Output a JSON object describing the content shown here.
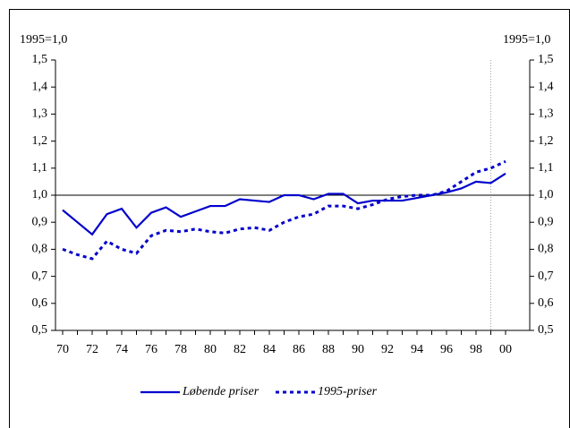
{
  "chart_data": {
    "type": "line",
    "y_label": "1995=1,0",
    "y2_label": "1995=1,0",
    "categories": [
      "70",
      null,
      "72",
      null,
      "74",
      null,
      "76",
      null,
      "78",
      null,
      "80",
      null,
      "82",
      null,
      "84",
      null,
      "86",
      null,
      "88",
      null,
      "90",
      null,
      "92",
      null,
      "94",
      null,
      "96",
      null,
      "98",
      null,
      "00"
    ],
    "series": [
      {
        "name": "Løbende priser",
        "color": "#0000cc",
        "dash": false,
        "values": [
          0.945,
          0.9,
          0.855,
          0.93,
          0.95,
          0.88,
          0.935,
          0.955,
          0.92,
          0.94,
          0.96,
          0.96,
          0.985,
          0.98,
          0.975,
          1.0,
          1.0,
          0.985,
          1.005,
          1.005,
          0.97,
          0.98,
          0.98,
          0.98,
          0.99,
          1.0,
          1.01,
          1.025,
          1.05,
          1.045,
          1.08
        ]
      },
      {
        "name": "1995-priser",
        "color": "#0000cc",
        "dash": true,
        "values": [
          0.8,
          0.78,
          0.765,
          0.83,
          0.8,
          0.785,
          0.85,
          0.87,
          0.865,
          0.875,
          0.865,
          0.86,
          0.875,
          0.88,
          0.87,
          0.9,
          0.92,
          0.93,
          0.96,
          0.96,
          0.95,
          0.965,
          0.985,
          0.995,
          1.0,
          1.0,
          1.015,
          1.05,
          1.085,
          1.1,
          1.125
        ]
      }
    ],
    "ylim": [
      0.5,
      1.5
    ],
    "yticks": [
      {
        "value": 0.5,
        "label": "0,5"
      },
      {
        "value": 0.6,
        "label": "0,6"
      },
      {
        "value": 0.7,
        "label": "0,7"
      },
      {
        "value": 0.8,
        "label": "0,8"
      },
      {
        "value": 0.9,
        "label": "0,9"
      },
      {
        "value": 1.0,
        "label": "1,0"
      },
      {
        "value": 1.1,
        "label": "1,1"
      },
      {
        "value": 1.2,
        "label": "1,2"
      },
      {
        "value": 1.3,
        "label": "1,3"
      },
      {
        "value": 1.4,
        "label": "1,4"
      },
      {
        "value": 1.5,
        "label": "1,5"
      }
    ],
    "reference_line": 1.0,
    "vline_index": 29,
    "legend": "bottom"
  }
}
